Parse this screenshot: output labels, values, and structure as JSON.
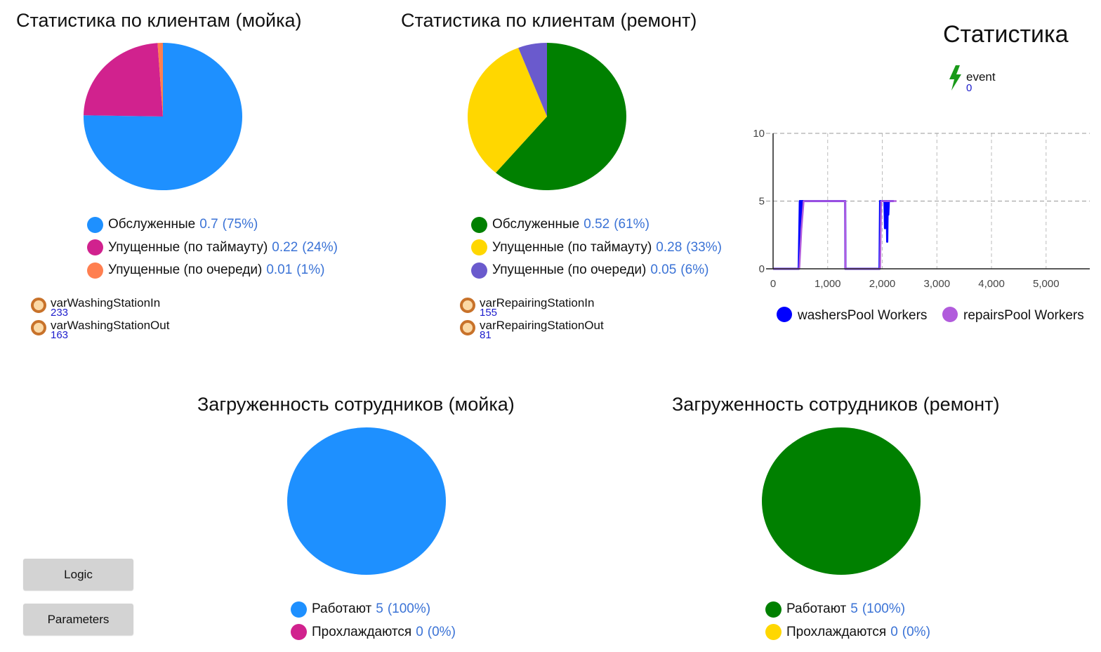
{
  "colors": {
    "blue": "#1e90ff",
    "magenta": "#d1228e",
    "coral": "#ff7f50",
    "green": "#008000",
    "yellow": "#ffd700",
    "purple": "#6a5acd",
    "line_blue": "#0000ff",
    "line_violet": "#b15bdc",
    "value_text": "#3b73d6",
    "event_green": "#1a9a1a"
  },
  "wash_clients": {
    "title": "Статистика по клиентам (мойка)",
    "slices": [
      {
        "label": "Обслуженные",
        "value": "0.7",
        "percent": "(75%)",
        "num": 0.7,
        "color": "#1e90ff"
      },
      {
        "label": "Упущенные (по таймауту)",
        "value": "0.22",
        "percent": "(24%)",
        "num": 0.22,
        "color": "#d1228e"
      },
      {
        "label": "Упущенные (по очереди)",
        "value": "0.01",
        "percent": "(1%)",
        "num": 0.01,
        "color": "#ff7f50"
      }
    ],
    "vars": [
      {
        "name": "varWashingStationIn",
        "value": "233"
      },
      {
        "name": "varWashingStationOut",
        "value": "163"
      }
    ]
  },
  "repair_clients": {
    "title": "Статистика по клиентам (ремонт)",
    "slices": [
      {
        "label": "Обслуженные",
        "value": "0.52",
        "percent": "(61%)",
        "num": 0.52,
        "color": "#008000"
      },
      {
        "label": "Упущенные (по таймауту)",
        "value": "0.28",
        "percent": "(33%)",
        "num": 0.28,
        "color": "#ffd700"
      },
      {
        "label": "Упущенные (по очереди)",
        "value": "0.05",
        "percent": "(6%)",
        "num": 0.05,
        "color": "#6a5acd"
      }
    ],
    "vars": [
      {
        "name": "varRepairingStationIn",
        "value": "155"
      },
      {
        "name": "varRepairingStationOut",
        "value": "81"
      }
    ]
  },
  "stats": {
    "title": "Статистика",
    "event_label": "event",
    "event_value": "0"
  },
  "chart_data": [
    {
      "type": "pie",
      "title": "Статистика по клиентам (мойка)",
      "labels": [
        "Обслуженные",
        "Упущенные (по таймауту)",
        "Упущенные (по очереди)"
      ],
      "values": [
        0.7,
        0.22,
        0.01
      ]
    },
    {
      "type": "pie",
      "title": "Статистика по клиентам (ремонт)",
      "labels": [
        "Обслуженные",
        "Упущенные (по таймауту)",
        "Упущенные (по очереди)"
      ],
      "values": [
        0.52,
        0.28,
        0.05
      ]
    },
    {
      "type": "line",
      "title": "Статистика",
      "xlim": [
        0,
        5800
      ],
      "ylim": [
        0,
        10
      ],
      "x_ticks": [
        0,
        1000,
        2000,
        3000,
        4000,
        5000
      ],
      "x_tick_labels": [
        "0",
        "1,000",
        "2,000",
        "3,000",
        "4,000",
        "5,000"
      ],
      "y_ticks": [
        0,
        5,
        10
      ],
      "y_tick_labels": [
        "0",
        "5",
        "10"
      ],
      "grid": true,
      "legend_position": "bottom",
      "series": [
        {
          "name": "washersPool Workers",
          "color": "#0000ff",
          "points": [
            [
              0,
              0
            ],
            [
              470,
              0
            ],
            [
              490,
              5
            ],
            [
              500,
              2
            ],
            [
              505,
              5
            ],
            [
              515,
              3
            ],
            [
              525,
              5
            ],
            [
              1320,
              5
            ],
            [
              1325,
              0
            ],
            [
              1950,
              0
            ],
            [
              1960,
              5
            ],
            [
              2040,
              5
            ],
            [
              2050,
              3
            ],
            [
              2060,
              5
            ],
            [
              2080,
              5
            ],
            [
              2090,
              2
            ],
            [
              2100,
              5
            ],
            [
              2110,
              4
            ],
            [
              2120,
              5
            ],
            [
              2200,
              5
            ],
            [
              2210,
              5
            ]
          ]
        },
        {
          "name": "repairsPool Workers",
          "color": "#b15bdc",
          "points": [
            [
              0,
              0
            ],
            [
              480,
              0
            ],
            [
              520,
              3
            ],
            [
              560,
              5
            ],
            [
              1320,
              5
            ],
            [
              1325,
              0
            ],
            [
              1960,
              0
            ],
            [
              1980,
              5
            ],
            [
              2260,
              5
            ]
          ]
        }
      ]
    },
    {
      "type": "pie",
      "title": "Загруженность сотрудников (мойка)",
      "labels": [
        "Работают",
        "Прохлаждаются"
      ],
      "values": [
        5,
        0
      ]
    },
    {
      "type": "pie",
      "title": "Загруженность сотрудников (ремонт)",
      "labels": [
        "Работают",
        "Прохлаждаются"
      ],
      "values": [
        5,
        0
      ]
    }
  ],
  "wash_staff": {
    "title": "Загруженность сотрудников (мойка)",
    "slices": [
      {
        "label": "Работают",
        "value": "5",
        "percent": "(100%)",
        "num": 5,
        "color": "#1e90ff"
      },
      {
        "label": "Прохлаждаются",
        "value": "0",
        "percent": "(0%)",
        "num": 0,
        "color": "#d1228e"
      }
    ]
  },
  "repair_staff": {
    "title": "Загруженность сотрудников (ремонт)",
    "slices": [
      {
        "label": "Работают",
        "value": "5",
        "percent": "(100%)",
        "num": 5,
        "color": "#008000"
      },
      {
        "label": "Прохлаждаются",
        "value": "0",
        "percent": "(0%)",
        "num": 0,
        "color": "#ffd700"
      }
    ]
  },
  "buttons": {
    "logic": "Logic",
    "parameters": "Parameters"
  }
}
